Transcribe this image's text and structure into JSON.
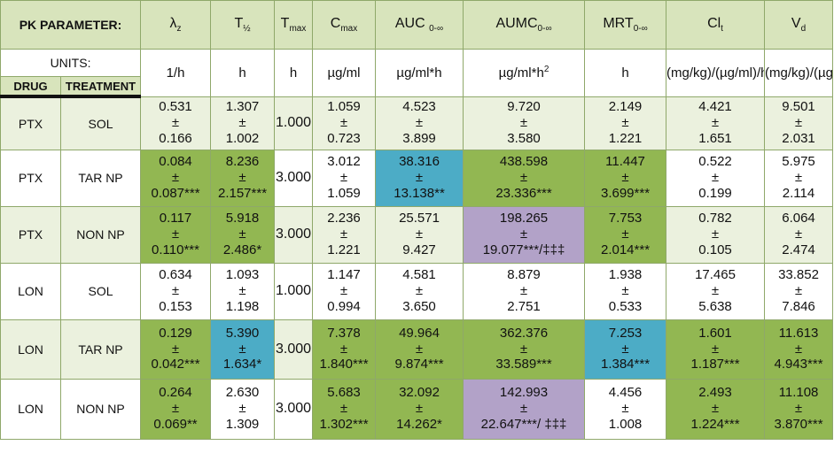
{
  "header": {
    "pk": "PK PARAMETER:",
    "cols": [
      {
        "main": "λ",
        "sub": "z"
      },
      {
        "main": "T",
        "sub": "½"
      },
      {
        "main": "T",
        "sub": "max"
      },
      {
        "main": "C",
        "sub": "max"
      },
      {
        "main": "AUC ",
        "sub": "0-∞"
      },
      {
        "main": "AUMC",
        "sub": "0-∞"
      },
      {
        "main": "MRT",
        "sub": "0-∞"
      },
      {
        "main": "Cl",
        "sub": "t"
      },
      {
        "main": "V",
        "sub": "d"
      }
    ]
  },
  "units": {
    "label": "UNITS:",
    "values": [
      "1/h",
      "h",
      "h",
      "µg/ml",
      "µg/ml*h",
      "µg/ml*h",
      "h",
      "(mg/kg)/(µg/ml)/h",
      "(mg/kg)/(µg/ml)"
    ],
    "aumc_sup": "2"
  },
  "drug_label": "DRUG",
  "treatment_label": "TREATMENT",
  "pm": "±",
  "rows": [
    {
      "drug": "PTX",
      "treatment": "SOL",
      "tmax": "1.000",
      "cells": [
        {
          "mean": "0.531",
          "sd": "0.166",
          "color": "light"
        },
        {
          "mean": "1.307",
          "sd": "1.002",
          "color": "light"
        },
        {
          "mean": "1.059",
          "sd": "0.723",
          "color": "light"
        },
        {
          "mean": "4.523",
          "sd": "3.899",
          "color": "light"
        },
        {
          "mean": "9.720",
          "sd": "3.580",
          "color": "light"
        },
        {
          "mean": "2.149",
          "sd": "1.221",
          "color": "light"
        },
        {
          "mean": "4.421",
          "sd": "1.651",
          "color": "light"
        },
        {
          "mean": "9.501",
          "sd": "2.031",
          "color": "light"
        }
      ]
    },
    {
      "drug": "PTX",
      "treatment": "TAR NP",
      "tmax": "3.000",
      "cells": [
        {
          "mean": "0.084",
          "sd": "0.087***",
          "color": "green"
        },
        {
          "mean": "8.236",
          "sd": "2.157***",
          "color": "green"
        },
        {
          "mean": "3.012",
          "sd": "1.059",
          "color": "white"
        },
        {
          "mean": "38.316",
          "sd": "13.138**",
          "color": "blue"
        },
        {
          "mean": "438.598",
          "sd": "23.336***",
          "color": "green"
        },
        {
          "mean": "11.447",
          "sd": "3.699***",
          "color": "green"
        },
        {
          "mean": "0.522",
          "sd": "0.199",
          "color": "white"
        },
        {
          "mean": "5.975",
          "sd": "2.114",
          "color": "white"
        }
      ]
    },
    {
      "drug": "PTX",
      "treatment": "NON NP",
      "tmax": "3.000",
      "cells": [
        {
          "mean": "0.117",
          "sd": "0.110***",
          "color": "green"
        },
        {
          "mean": "5.918",
          "sd": "2.486*",
          "color": "green"
        },
        {
          "mean": "2.236",
          "sd": "1.221",
          "color": "light"
        },
        {
          "mean": "25.571",
          "sd": "9.427",
          "color": "light"
        },
        {
          "mean": "198.265",
          "sd": "19.077***/‡‡‡",
          "color": "purple"
        },
        {
          "mean": "7.753",
          "sd": "2.014***",
          "color": "green"
        },
        {
          "mean": "0.782",
          "sd": "0.105",
          "color": "light"
        },
        {
          "mean": "6.064",
          "sd": "2.474",
          "color": "light"
        }
      ]
    },
    {
      "drug": "LON",
      "treatment": "SOL",
      "tmax": "1.000",
      "cells": [
        {
          "mean": "0.634",
          "sd": "0.153",
          "color": "white"
        },
        {
          "mean": "1.093",
          "sd": "1.198",
          "color": "white"
        },
        {
          "mean": "1.147",
          "sd": "0.994",
          "color": "white"
        },
        {
          "mean": "4.581",
          "sd": "3.650",
          "color": "white"
        },
        {
          "mean": "8.879",
          "sd": "2.751",
          "color": "white"
        },
        {
          "mean": "1.938",
          "sd": "0.533",
          "color": "white"
        },
        {
          "mean": "17.465",
          "sd": "5.638",
          "color": "white"
        },
        {
          "mean": "33.852",
          "sd": "7.846",
          "color": "white"
        }
      ]
    },
    {
      "drug": "LON",
      "treatment": "TAR NP",
      "tmax": "3.000",
      "cells": [
        {
          "mean": "0.129",
          "sd": "0.042***",
          "color": "green"
        },
        {
          "mean": "5.390",
          "sd": "1.634*",
          "color": "blue"
        },
        {
          "mean": "7.378",
          "sd": "1.840***",
          "color": "green"
        },
        {
          "mean": "49.964",
          "sd": "9.874***",
          "color": "green"
        },
        {
          "mean": "362.376",
          "sd": "33.589***",
          "color": "green"
        },
        {
          "mean": "7.253",
          "sd": "1.384***",
          "color": "blue"
        },
        {
          "mean": "1.601",
          "sd": "1.187***",
          "color": "green"
        },
        {
          "mean": "11.613",
          "sd": "4.943***",
          "color": "green"
        }
      ]
    },
    {
      "drug": "LON",
      "treatment": "NON NP",
      "tmax": "3.000",
      "cells": [
        {
          "mean": "0.264",
          "sd": "0.069**",
          "color": "green"
        },
        {
          "mean": "2.630",
          "sd": "1.309",
          "color": "white"
        },
        {
          "mean": "5.683",
          "sd": "1.302***",
          "color": "green"
        },
        {
          "mean": "32.092",
          "sd": "14.262*",
          "color": "green"
        },
        {
          "mean": "142.993",
          "sd": "22.647***/ ‡‡‡",
          "color": "purple"
        },
        {
          "mean": "4.456",
          "sd": "1.008",
          "color": "white"
        },
        {
          "mean": "2.493",
          "sd": "1.224***",
          "color": "green"
        },
        {
          "mean": "11.108",
          "sd": "3.870***",
          "color": "green"
        }
      ]
    }
  ]
}
